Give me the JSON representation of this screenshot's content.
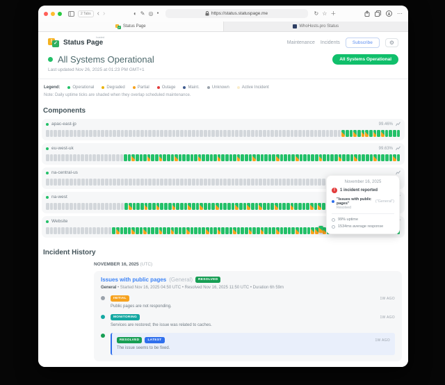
{
  "browser": {
    "tab_count": "2 Tabs",
    "url": "https://status.statuspage.me",
    "tabs": [
      {
        "label": "Status Page"
      },
      {
        "label": "WhoHosts.pro Status"
      }
    ]
  },
  "header": {
    "brand_name": "Status Page",
    "brand_badge": "hosted",
    "brand_icon_exclaim": "!",
    "brand_icon_check": "✓",
    "nav": [
      {
        "label": "Maintenance"
      },
      {
        "label": "Incidents"
      }
    ],
    "subscribe_label": "Subscribe",
    "status_pill": "All Systems Operational"
  },
  "status": {
    "heading": "All Systems Operational",
    "last_updated": "Last updated Nov 26, 2025 at 01:23 PM GMT+1",
    "dot_color": "#23c068"
  },
  "legend": {
    "label": "Legend:",
    "items": [
      {
        "label": "Operational",
        "color": "#23c068"
      },
      {
        "label": "Degraded",
        "color": "#eab308"
      },
      {
        "label": "Partial",
        "color": "#f6a21e"
      },
      {
        "label": "Outage",
        "color": "#e23b3b"
      },
      {
        "label": "Maint.",
        "color": "#3f5b8f"
      },
      {
        "label": "Unknown",
        "color": "#9aa2ab"
      },
      {
        "label": "Active Incident",
        "color": "#faedcb"
      }
    ],
    "note": "Note: Daily uptime ticks are shaded when they overlap scheduled maintenance."
  },
  "components": {
    "title": "Components",
    "rows": [
      {
        "name": "apac-east-jp",
        "uptime_pct": "99.46%",
        "dot_color": "#23c068",
        "ticks": "uuuuuuuuuuuuuuuuuuuuuuuuuuuuuuuuuuuuuuuuuuuuuuuuuuuuuuuuuuuuuuuuuuuuuuuuuuupoopoppopopoooo"
      },
      {
        "name": "eu-west-uk",
        "uptime_pct": "99.63%",
        "dot_color": "#23c068",
        "ticks": "uuuuuuuuuuuuuuuuuuuuoopooopoopooopooooopoooopoooopooopooooopoooopooooopoooopooopoooopoooopo"
      },
      {
        "name": "na-central-us",
        "uptime_pct": "",
        "dot_color": "#23c068",
        "ticks": "uuuuuuuuuuuuuuuuuuuuuuuuuuuuuuuuuuuuuuuuuuuuuuuuuuuuuuuuuuuuuuuuuuuuuuuuuuuuuuuuuuuuuuoooo"
      },
      {
        "name": "na-west",
        "uptime_pct": "",
        "dot_color": "#23c068",
        "ticks": "uuuuuuuuuuuuuuuuuuuuopooopoopooopooopoopooopoooopoopoopooopooopoooopopooopoopoooopooopoopo"
      },
      {
        "name": "Website",
        "uptime_pct": "",
        "dot_color": "#23c068",
        "ticks": "uuuuuuuuuuuuuuuuuopooopoopooopoopooopoooopoopooopooopoopooopoooopooopphpopoopooopoopoooopoo"
      }
    ]
  },
  "tooltip": {
    "date": "November 16, 2025",
    "alert_glyph": "!",
    "incident_count": "1 incident reported",
    "incident_name": "\"Issues with public pages\"",
    "incident_component": "(\"General\")",
    "incident_status": "Resolved",
    "uptime": "99% uptime",
    "response": "1534ms average response"
  },
  "incident_history": {
    "title": "Incident History",
    "date_heading": "NOVEMBER 16, 2025",
    "date_tz": "(UTC)",
    "incident": {
      "title": "Issues with public pages",
      "component": "(General)",
      "status_badge": "RESOLVED",
      "status_badge_color": "#179e54",
      "meta_bold": "General",
      "meta_rest": " • Started Nov 16, 2025 04:50 UTC • Resolved Nov 16, 2025 11:50 UTC • Duration 6h 59m",
      "updates": [
        {
          "badge": "INITIAL",
          "badge_color": "#f6a21e",
          "dot_color": "#9aa2ab",
          "time": "1W AGO",
          "text": "Public pages are not responding."
        },
        {
          "badge": "MONITORING",
          "badge_color": "#14a8a2",
          "dot_color": "#14a8a2",
          "time": "1W AGO",
          "text": "Services are restored; the issue was related to caches."
        },
        {
          "badge": "RESOLVED",
          "badge_color": "#179e54",
          "badge2": "LATEST",
          "badge2_color": "#2f6fed",
          "dot_color": "#179e54",
          "time": "1W AGO",
          "text": "The issue seems to be fixed."
        }
      ]
    }
  }
}
